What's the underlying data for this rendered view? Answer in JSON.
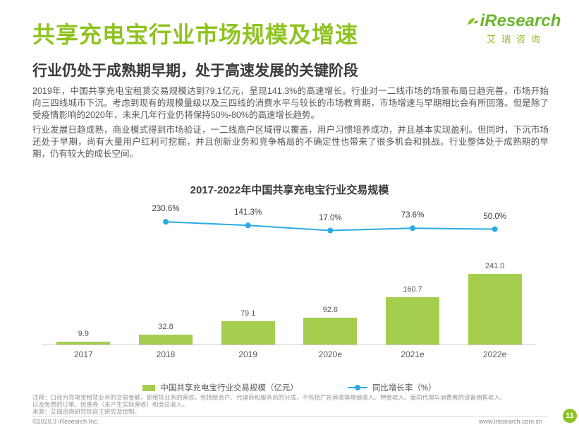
{
  "page": {
    "title": "共享充电宝行业市场规模及增速",
    "subtitle": "行业仍处于成熟期早期，处于高速发展的关键阶段",
    "logo": {
      "brand": "iResearch",
      "brand_cn": "艾瑞咨询"
    },
    "page_number": "11",
    "footer": {
      "copyright": "©2020.3 iResearch Inc.",
      "website": "www.iresearch.com.cn"
    }
  },
  "body": {
    "p1": "2019年，中国共享充电宝租赁交易规模达到79.1亿元，呈现141.3%的高速增长。行业对一二线市场的场景布局日趋完善，市场开始向三四线城市下沉。考虑到现有的规模量级以及三四线的消费水平与较长的市场教育期，市场增速与早期相比会有所回落。但是除了受疫情影响的2020年，未来几年行业仍将保持50%-80%的高速增长趋势。",
    "p2": "行业发展日趋成熟，商业模式得到市场验证，一二线高户区域得以覆盖，用户习惯培养成功，并且基本实现盈利。但同时，下沉市场还处于早期，尚有大量用户红利可挖掘，并且创新业务和竞争格局的不确定性也带来了很多机会和挑战。行业整体处于成熟期的早期，仍有较大的成长空间。"
  },
  "chart_data": {
    "type": "bar",
    "title": "2017-2022年中国共享充电宝行业交易规模",
    "categories": [
      "2017",
      "2018",
      "2019",
      "2020e",
      "2021e",
      "2022e"
    ],
    "series": [
      {
        "name": "中国共享充电宝行业交易规模（亿元）",
        "render": "bar",
        "values": [
          9.9,
          32.8,
          79.1,
          92.6,
          160.7,
          241.0
        ]
      },
      {
        "name": "同比增长率（%）",
        "render": "line",
        "categories": [
          "2018",
          "2019",
          "2020e",
          "2021e",
          "2022e"
        ],
        "values": [
          230.6,
          141.3,
          17.0,
          73.6,
          50.0
        ]
      }
    ],
    "colors": {
      "bar": "#A5CE4E",
      "line": "#29ABE2",
      "accent_green": "#8FC31F"
    },
    "grid": false,
    "legend_position": "bottom",
    "bar_axis_max": 241.0,
    "line_axis_unit": "%"
  },
  "notes": {
    "line1": "注释：口径为充电宝租赁业务的交易金额，即租赁业务的营收，包括给商户、代理商和服务商的分成，不包括广告营收等增值收入、押金收入、面向代理与消费者的设备销售收入、",
    "line2": "以及免费的订单、优惠券（未产生实际营收）和会员收入。",
    "source": "来源：艾瑞咨询研究院自主研究及绘制。"
  }
}
